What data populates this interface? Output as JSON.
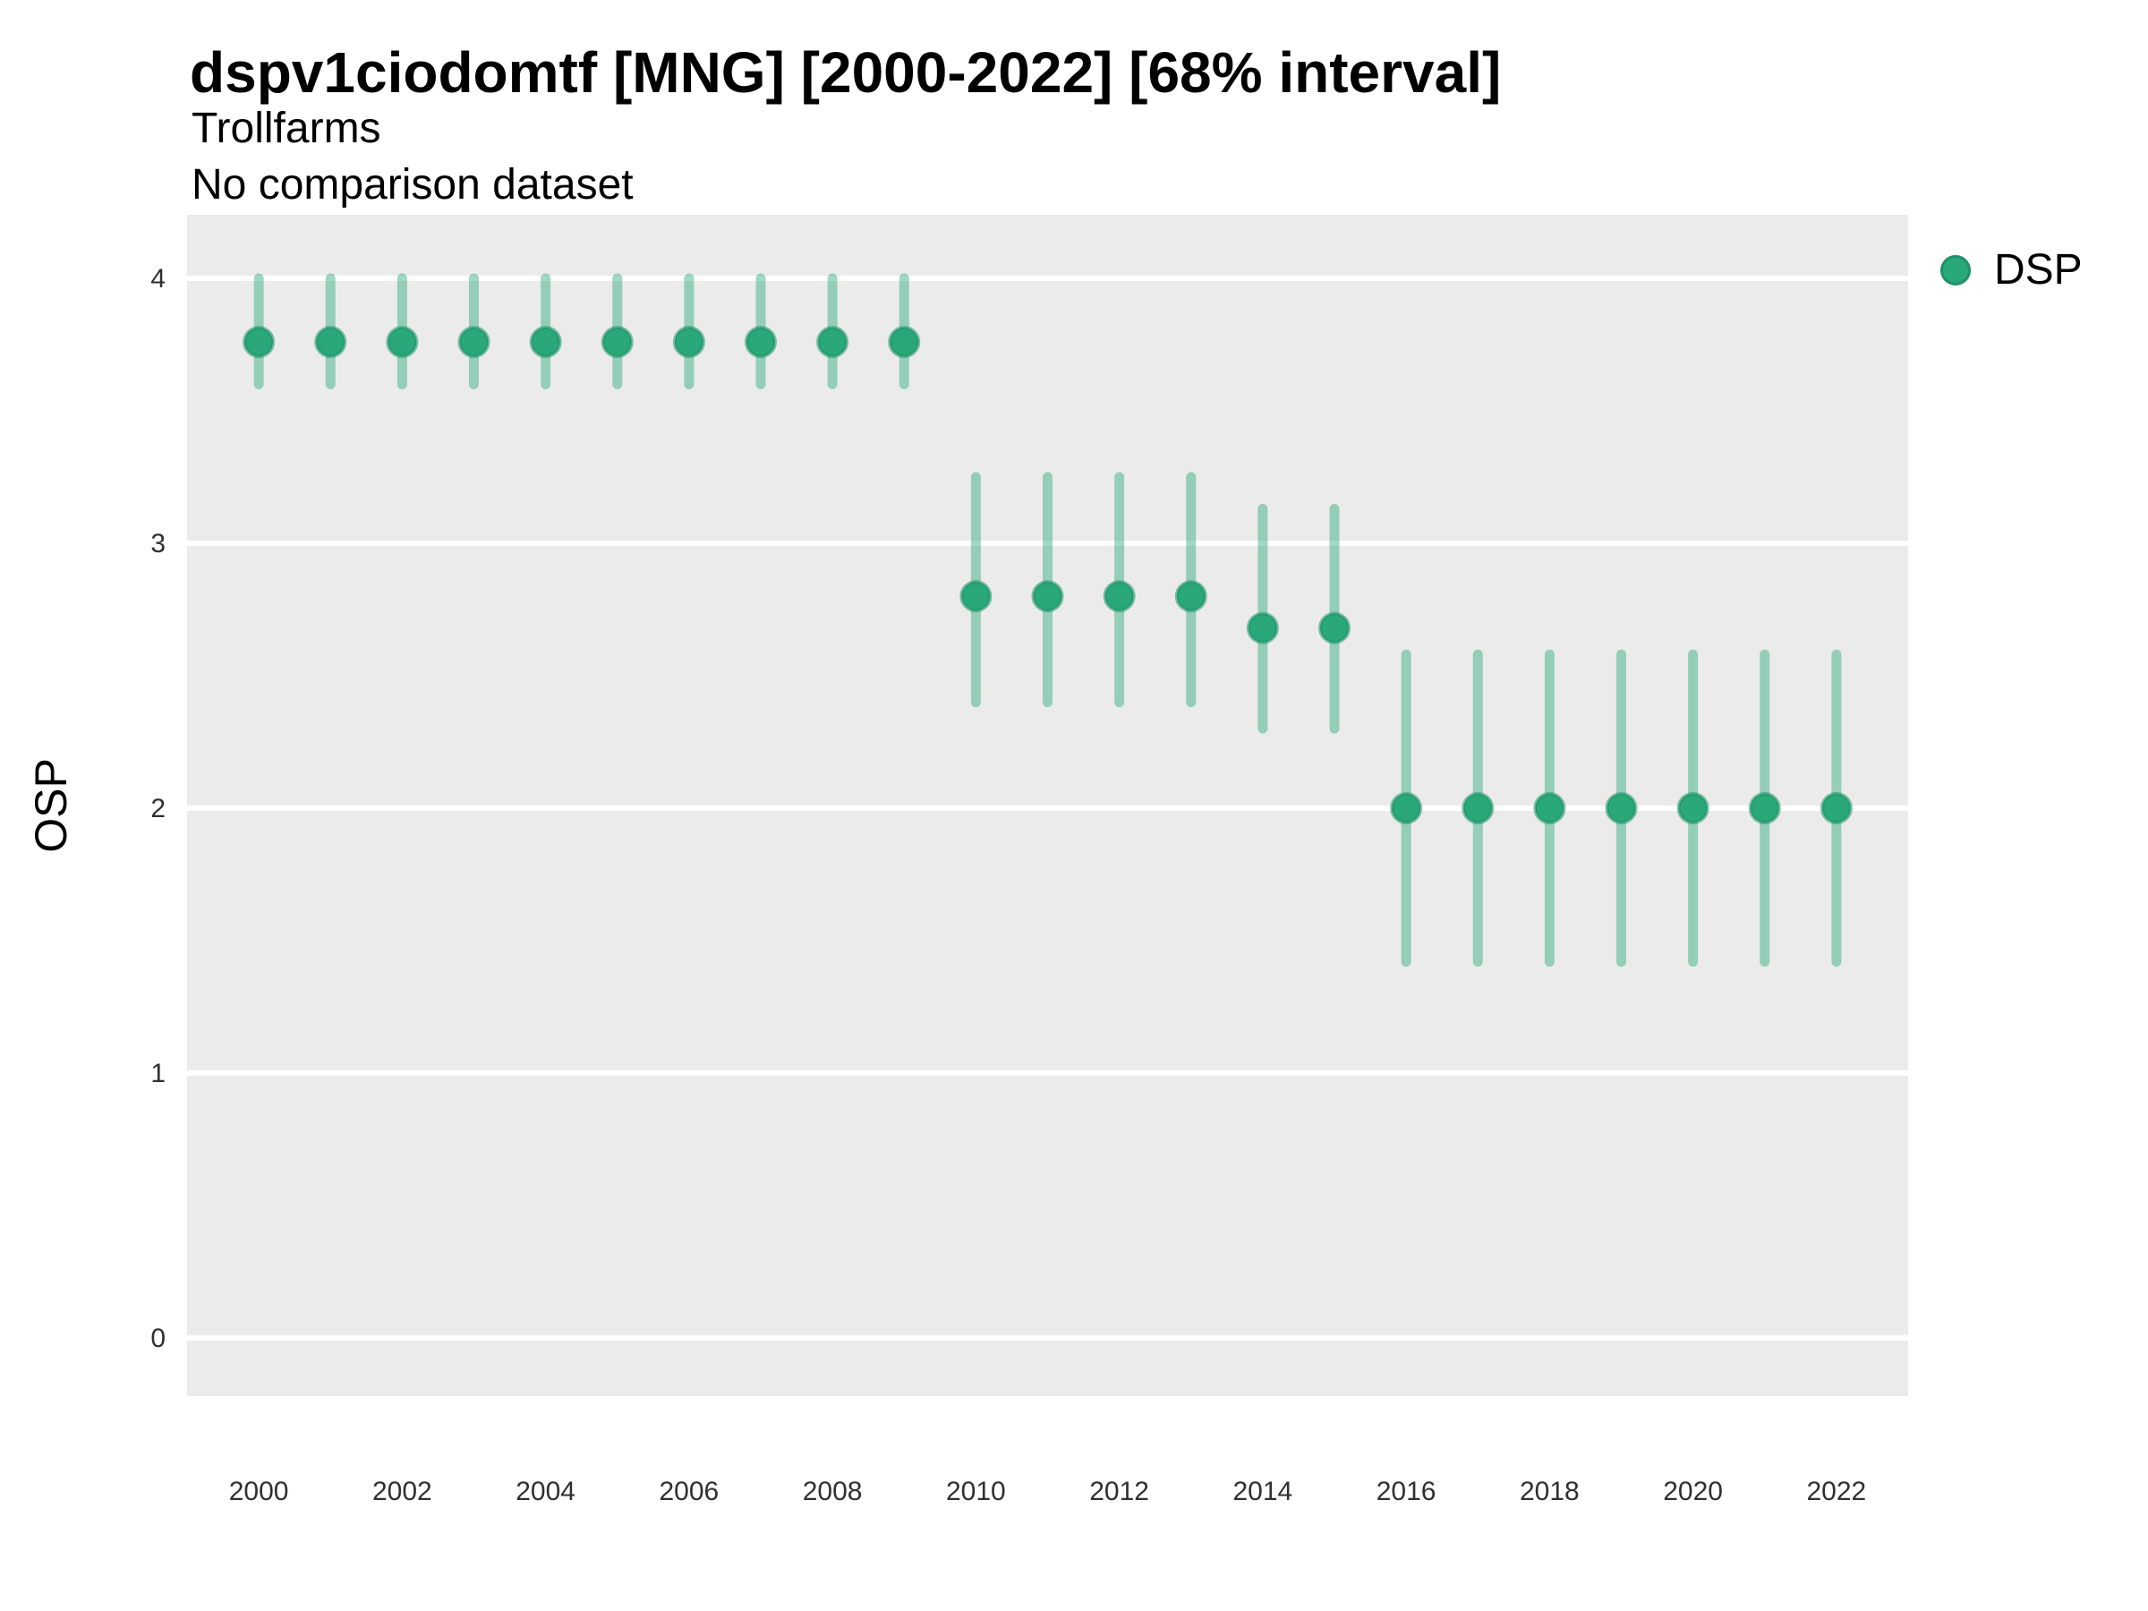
{
  "header": {
    "title": "dspv1ciodomtf [MNG] [2000-2022] [68% interval]",
    "subtitle": "Trollfarms",
    "comparison_note": "No comparison dataset"
  },
  "legend": {
    "position": "right",
    "items": [
      {
        "label": "DSP",
        "color": "#2aa87a"
      }
    ]
  },
  "colors": {
    "point_fill": "#2aa87a",
    "point_ring": "#1e9168",
    "interval_bar": "#2aa87a",
    "interval_bar_opacity": 0.45,
    "panel_bg": "#ebebeb",
    "gridline": "#ffffff",
    "tick_text": "#303030",
    "text": "#000000"
  },
  "chart_data": {
    "type": "pointrange",
    "title": "dspv1ciodomtf [MNG] [2000-2022] [68% interval]",
    "subtitle_lines": [
      "Trollfarms",
      "No comparison dataset"
    ],
    "interval_label": "68% interval",
    "xlabel": "",
    "ylabel": "OSP",
    "grid": "horizontal-major-only",
    "x_ticks": [
      2000,
      2002,
      2004,
      2006,
      2008,
      2010,
      2012,
      2014,
      2016,
      2018,
      2020,
      2022
    ],
    "y_ticks": [
      0,
      1,
      2,
      3,
      4
    ],
    "x_domain": [
      1999,
      2023
    ],
    "y_domain": [
      -0.22,
      4.24
    ],
    "series": [
      {
        "name": "DSP",
        "color": "#2aa87a",
        "points": [
          {
            "year": 2000,
            "value": 3.76,
            "lo": 3.6,
            "hi": 4.0
          },
          {
            "year": 2001,
            "value": 3.76,
            "lo": 3.6,
            "hi": 4.0
          },
          {
            "year": 2002,
            "value": 3.76,
            "lo": 3.6,
            "hi": 4.0
          },
          {
            "year": 2003,
            "value": 3.76,
            "lo": 3.6,
            "hi": 4.0
          },
          {
            "year": 2004,
            "value": 3.76,
            "lo": 3.6,
            "hi": 4.0
          },
          {
            "year": 2005,
            "value": 3.76,
            "lo": 3.6,
            "hi": 4.0
          },
          {
            "year": 2006,
            "value": 3.76,
            "lo": 3.6,
            "hi": 4.0
          },
          {
            "year": 2007,
            "value": 3.76,
            "lo": 3.6,
            "hi": 4.0
          },
          {
            "year": 2008,
            "value": 3.76,
            "lo": 3.6,
            "hi": 4.0
          },
          {
            "year": 2009,
            "value": 3.76,
            "lo": 3.6,
            "hi": 4.0
          },
          {
            "year": 2010,
            "value": 2.8,
            "lo": 2.4,
            "hi": 3.25
          },
          {
            "year": 2011,
            "value": 2.8,
            "lo": 2.4,
            "hi": 3.25
          },
          {
            "year": 2012,
            "value": 2.8,
            "lo": 2.4,
            "hi": 3.25
          },
          {
            "year": 2013,
            "value": 2.8,
            "lo": 2.4,
            "hi": 3.25
          },
          {
            "year": 2014,
            "value": 2.68,
            "lo": 2.3,
            "hi": 3.13
          },
          {
            "year": 2015,
            "value": 2.68,
            "lo": 2.3,
            "hi": 3.13
          },
          {
            "year": 2016,
            "value": 2.0,
            "lo": 1.42,
            "hi": 2.58
          },
          {
            "year": 2017,
            "value": 2.0,
            "lo": 1.42,
            "hi": 2.58
          },
          {
            "year": 2018,
            "value": 2.0,
            "lo": 1.42,
            "hi": 2.58
          },
          {
            "year": 2019,
            "value": 2.0,
            "lo": 1.42,
            "hi": 2.58
          },
          {
            "year": 2020,
            "value": 2.0,
            "lo": 1.42,
            "hi": 2.58
          },
          {
            "year": 2021,
            "value": 2.0,
            "lo": 1.42,
            "hi": 2.58
          },
          {
            "year": 2022,
            "value": 2.0,
            "lo": 1.42,
            "hi": 2.58
          }
        ]
      }
    ]
  }
}
